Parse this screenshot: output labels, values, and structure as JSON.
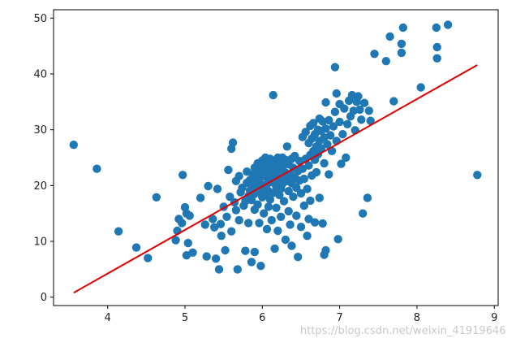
{
  "chart_data": {
    "type": "scatter",
    "title": "",
    "xlabel": "",
    "ylabel": "",
    "xlim": [
      3.3,
      9.05
    ],
    "ylim": [
      -1.5,
      51.5
    ],
    "xticks": [
      4,
      5,
      6,
      7,
      8,
      9
    ],
    "yticks": [
      0,
      10,
      20,
      30,
      40,
      50
    ],
    "grid": false,
    "point_color": "#1f77b4",
    "line_color": "#e00000",
    "points": [
      [
        3.56,
        27.3
      ],
      [
        3.86,
        23.0
      ],
      [
        4.14,
        11.8
      ],
      [
        4.37,
        8.9
      ],
      [
        4.52,
        7.0
      ],
      [
        4.63,
        17.9
      ],
      [
        4.88,
        10.2
      ],
      [
        4.9,
        11.9
      ],
      [
        4.92,
        14.0
      ],
      [
        4.96,
        13.3
      ],
      [
        4.97,
        21.9
      ],
      [
        5.0,
        16.1
      ],
      [
        5.02,
        15.0
      ],
      [
        5.02,
        7.5
      ],
      [
        5.04,
        9.7
      ],
      [
        5.06,
        14.6
      ],
      [
        5.1,
        8.0
      ],
      [
        5.2,
        17.8
      ],
      [
        5.26,
        13.0
      ],
      [
        5.28,
        7.3
      ],
      [
        5.3,
        19.9
      ],
      [
        5.36,
        14.0
      ],
      [
        5.38,
        12.5
      ],
      [
        5.4,
        6.9
      ],
      [
        5.42,
        19.4
      ],
      [
        5.44,
        5.0
      ],
      [
        5.46,
        13.1
      ],
      [
        5.47,
        11.0
      ],
      [
        5.5,
        16.2
      ],
      [
        5.52,
        8.4
      ],
      [
        5.54,
        14.4
      ],
      [
        5.56,
        22.8
      ],
      [
        5.58,
        18.0
      ],
      [
        5.6,
        26.6
      ],
      [
        5.6,
        11.8
      ],
      [
        5.62,
        27.7
      ],
      [
        5.64,
        17.0
      ],
      [
        5.66,
        20.8
      ],
      [
        5.66,
        15.6
      ],
      [
        5.68,
        5.0
      ],
      [
        5.7,
        21.7
      ],
      [
        5.7,
        13.8
      ],
      [
        5.72,
        18.8
      ],
      [
        5.74,
        19.6
      ],
      [
        5.76,
        16.4
      ],
      [
        5.78,
        8.3
      ],
      [
        5.78,
        17.2
      ],
      [
        5.8,
        20.5
      ],
      [
        5.8,
        22.5
      ],
      [
        5.82,
        18.1
      ],
      [
        5.82,
        13.3
      ],
      [
        5.84,
        21.0
      ],
      [
        5.84,
        19.1
      ],
      [
        5.86,
        6.3
      ],
      [
        5.86,
        17.4
      ],
      [
        5.88,
        22.0
      ],
      [
        5.88,
        20.0
      ],
      [
        5.9,
        23.2
      ],
      [
        5.9,
        18.5
      ],
      [
        5.9,
        15.7
      ],
      [
        5.9,
        8.1
      ],
      [
        5.92,
        21.4
      ],
      [
        5.92,
        19.7
      ],
      [
        5.94,
        24.0
      ],
      [
        5.94,
        22.6
      ],
      [
        5.94,
        16.6
      ],
      [
        5.96,
        20.7
      ],
      [
        5.96,
        18.9
      ],
      [
        5.96,
        13.3
      ],
      [
        5.98,
        23.6
      ],
      [
        5.98,
        21.8
      ],
      [
        5.98,
        5.6
      ],
      [
        6.0,
        24.5
      ],
      [
        6.0,
        22.2
      ],
      [
        6.0,
        20.1
      ],
      [
        6.0,
        17.9
      ],
      [
        6.02,
        23.1
      ],
      [
        6.02,
        19.4
      ],
      [
        6.02,
        15.0
      ],
      [
        6.04,
        25.0
      ],
      [
        6.04,
        21.6
      ],
      [
        6.04,
        18.4
      ],
      [
        6.06,
        24.0
      ],
      [
        6.06,
        22.8
      ],
      [
        6.06,
        20.2
      ],
      [
        6.06,
        12.2
      ],
      [
        6.08,
        23.3
      ],
      [
        6.08,
        19.0
      ],
      [
        6.08,
        16.2
      ],
      [
        6.1,
        24.8
      ],
      [
        6.1,
        21.3
      ],
      [
        6.1,
        17.5
      ],
      [
        6.12,
        22.4
      ],
      [
        6.12,
        20.6
      ],
      [
        6.12,
        13.8
      ],
      [
        6.14,
        24.2
      ],
      [
        6.14,
        36.2
      ],
      [
        6.14,
        18.7
      ],
      [
        6.16,
        23.6
      ],
      [
        6.16,
        21.0
      ],
      [
        6.16,
        8.7
      ],
      [
        6.18,
        22.0
      ],
      [
        6.18,
        19.8
      ],
      [
        6.18,
        16.0
      ],
      [
        6.2,
        25.0
      ],
      [
        6.2,
        23.0
      ],
      [
        6.2,
        20.9
      ],
      [
        6.2,
        11.9
      ],
      [
        6.22,
        24.0
      ],
      [
        6.22,
        21.8
      ],
      [
        6.22,
        18.3
      ],
      [
        6.24,
        22.6
      ],
      [
        6.24,
        19.4
      ],
      [
        6.24,
        14.4
      ],
      [
        6.26,
        25.0
      ],
      [
        6.26,
        23.4
      ],
      [
        6.26,
        20.3
      ],
      [
        6.28,
        21.6
      ],
      [
        6.28,
        17.2
      ],
      [
        6.3,
        24.6
      ],
      [
        6.3,
        22.3
      ],
      [
        6.3,
        10.3
      ],
      [
        6.32,
        20.8
      ],
      [
        6.32,
        27.0
      ],
      [
        6.34,
        23.8
      ],
      [
        6.34,
        19.0
      ],
      [
        6.34,
        15.4
      ],
      [
        6.36,
        22.0
      ],
      [
        6.36,
        13.0
      ],
      [
        6.38,
        24.8
      ],
      [
        6.38,
        20.4
      ],
      [
        6.38,
        9.2
      ],
      [
        6.4,
        23.2
      ],
      [
        6.4,
        18.0
      ],
      [
        6.42,
        21.4
      ],
      [
        6.42,
        25.3
      ],
      [
        6.44,
        19.6
      ],
      [
        6.44,
        14.6
      ],
      [
        6.46,
        22.6
      ],
      [
        6.46,
        7.2
      ],
      [
        6.48,
        24.4
      ],
      [
        6.48,
        20.9
      ],
      [
        6.5,
        18.6
      ],
      [
        6.5,
        12.6
      ],
      [
        6.52,
        23.0
      ],
      [
        6.52,
        28.7
      ],
      [
        6.54,
        21.2
      ],
      [
        6.54,
        16.4
      ],
      [
        6.56,
        29.6
      ],
      [
        6.56,
        24.8
      ],
      [
        6.58,
        19.4
      ],
      [
        6.58,
        11.0
      ],
      [
        6.6,
        27.6
      ],
      [
        6.6,
        23.6
      ],
      [
        6.6,
        14.0
      ],
      [
        6.62,
        30.7
      ],
      [
        6.62,
        25.5
      ],
      [
        6.62,
        17.3
      ],
      [
        6.64,
        28.4
      ],
      [
        6.64,
        21.8
      ],
      [
        6.66,
        31.2
      ],
      [
        6.66,
        26.2
      ],
      [
        6.68,
        29.2
      ],
      [
        6.68,
        24.6
      ],
      [
        6.68,
        13.4
      ],
      [
        6.7,
        27.0
      ],
      [
        6.7,
        22.4
      ],
      [
        6.72,
        30.0
      ],
      [
        6.72,
        25.6
      ],
      [
        6.74,
        32.0
      ],
      [
        6.74,
        28.0
      ],
      [
        6.74,
        17.8
      ],
      [
        6.76,
        29.8
      ],
      [
        6.76,
        26.6
      ],
      [
        6.78,
        31.5
      ],
      [
        6.78,
        13.2
      ],
      [
        6.8,
        28.6
      ],
      [
        6.8,
        24.0
      ],
      [
        6.8,
        7.6
      ],
      [
        6.82,
        34.9
      ],
      [
        6.82,
        30.2
      ],
      [
        6.82,
        8.4
      ],
      [
        6.84,
        27.4
      ],
      [
        6.86,
        31.7
      ],
      [
        6.86,
        22.0
      ],
      [
        6.88,
        29.0
      ],
      [
        6.9,
        26.2
      ],
      [
        6.92,
        30.6
      ],
      [
        6.94,
        41.2
      ],
      [
        6.94,
        33.2
      ],
      [
        6.96,
        36.5
      ],
      [
        6.96,
        28.0
      ],
      [
        6.98,
        10.4
      ],
      [
        7.0,
        34.6
      ],
      [
        7.0,
        31.4
      ],
      [
        7.02,
        23.9
      ],
      [
        7.04,
        29.2
      ],
      [
        7.06,
        33.8
      ],
      [
        7.08,
        25.0
      ],
      [
        7.1,
        31.0
      ],
      [
        7.12,
        35.2
      ],
      [
        7.14,
        32.4
      ],
      [
        7.16,
        36.2
      ],
      [
        7.18,
        33.4
      ],
      [
        7.2,
        29.9
      ],
      [
        7.22,
        35.0
      ],
      [
        7.24,
        36.0
      ],
      [
        7.26,
        33.6
      ],
      [
        7.28,
        31.8
      ],
      [
        7.3,
        15.0
      ],
      [
        7.32,
        34.8
      ],
      [
        7.36,
        17.8
      ],
      [
        7.38,
        33.4
      ],
      [
        7.4,
        31.6
      ],
      [
        7.45,
        43.6
      ],
      [
        7.6,
        42.3
      ],
      [
        7.65,
        46.7
      ],
      [
        7.7,
        35.1
      ],
      [
        7.8,
        45.4
      ],
      [
        7.8,
        43.8
      ],
      [
        7.82,
        48.3
      ],
      [
        8.05,
        37.6
      ],
      [
        8.25,
        48.3
      ],
      [
        8.26,
        44.8
      ],
      [
        8.26,
        42.8
      ],
      [
        8.4,
        48.8
      ],
      [
        8.78,
        21.9
      ]
    ],
    "regression_line": {
      "x": [
        3.56,
        8.78
      ],
      "y": [
        0.8,
        41.6
      ]
    }
  },
  "watermark": "https://blog.csdn.net/weixin_41919646"
}
